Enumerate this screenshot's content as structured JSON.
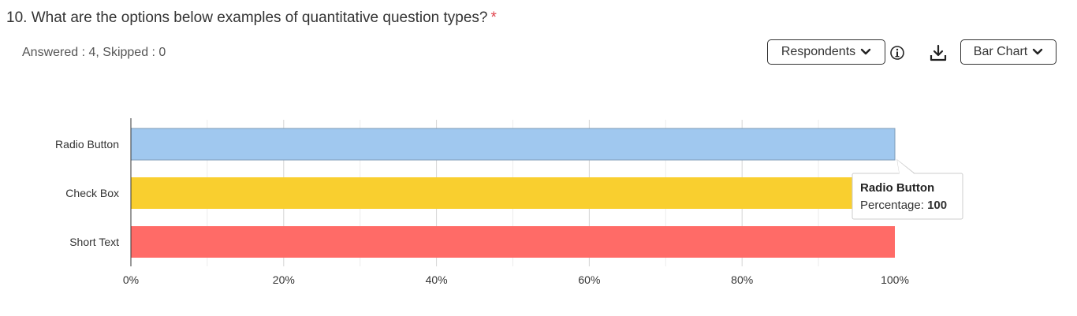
{
  "question": {
    "title": "10. What are the options below examples of quantitative question types?",
    "required_mark": "*"
  },
  "summary": {
    "text": "Answered : 4, Skipped : 0"
  },
  "toolbar": {
    "respondents_label": "Respondents",
    "chart_type_label": "Bar Chart",
    "info_icon": "info-icon",
    "download_icon": "download-icon"
  },
  "chart_data": {
    "type": "bar",
    "orientation": "horizontal",
    "categories": [
      "Radio Button",
      "Check Box",
      "Short Text"
    ],
    "values": [
      100,
      100,
      100
    ],
    "colors": [
      "#a0c8ef",
      "#f9cf2f",
      "#ff6b67"
    ],
    "xlim": [
      0,
      100
    ],
    "x_ticks": [
      "0%",
      "20%",
      "40%",
      "60%",
      "80%",
      "100%"
    ],
    "grid": true,
    "tooltip": {
      "title": "Radio Button",
      "label": "Percentage: ",
      "value": "100"
    }
  }
}
